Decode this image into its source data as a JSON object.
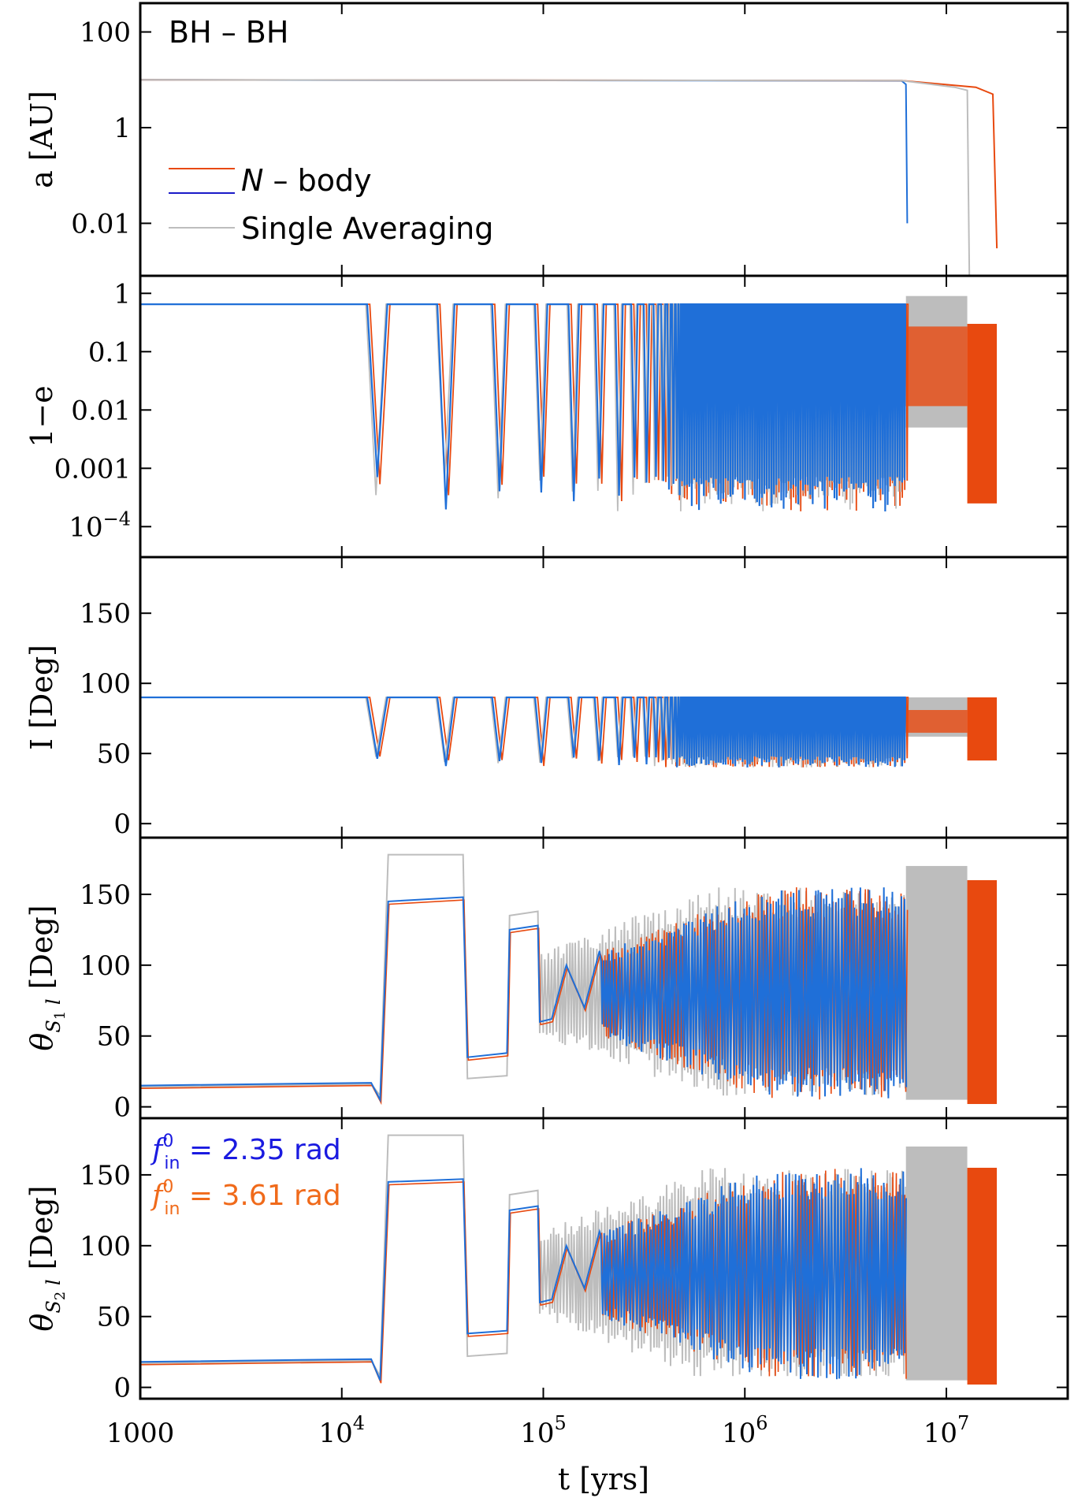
{
  "colors": {
    "orange": "#e8490f",
    "blue": "#1f6fd8",
    "legend_blue": "#1a1ac8",
    "gray": "#bdbdbd",
    "annot_blue": "#1a1ae0",
    "annot_orange": "#f06a1a"
  },
  "chart_data": [
    {
      "type": "line",
      "panel": "a",
      "title": "BH – BH",
      "ylabel": "a [AU]",
      "yscale": "log",
      "ylim": [
        0.0008,
        400
      ],
      "yticks": [
        {
          "v": 100,
          "label": "100"
        },
        {
          "v": 1,
          "label": "1"
        },
        {
          "v": 0.01,
          "label": "0.01"
        }
      ],
      "legend": [
        {
          "label": "N – body",
          "style": "orange+blue",
          "label_parts": [
            "N",
            " – body"
          ]
        },
        {
          "label": "Single Averaging",
          "style": "gray"
        }
      ],
      "series": [
        {
          "name": "N – body",
          "color": "blue",
          "points": [
            [
              1000,
              10
            ],
            [
              6000000,
              9.5
            ],
            [
              6300000,
              8
            ],
            [
              6400000,
              0.01
            ]
          ]
        },
        {
          "name": "N – body",
          "color": "orange",
          "points": [
            [
              1000,
              10
            ],
            [
              6000000,
              9.6
            ],
            [
              14000000,
              7
            ],
            [
              17000000,
              5
            ],
            [
              17800000,
              0.003
            ]
          ]
        },
        {
          "name": "Single Averaging",
          "color": "gray",
          "points": [
            [
              1000,
              10
            ],
            [
              6000000,
              9.6
            ],
            [
              11000000,
              7
            ],
            [
              12700000,
              6
            ],
            [
              13000000,
              0.0008
            ]
          ]
        }
      ]
    },
    {
      "type": "line",
      "panel": "1-e",
      "ylabel": "1−e",
      "yscale": "log",
      "ylim": [
        3e-05,
        2
      ],
      "yticks": [
        {
          "v": 1,
          "label": "1"
        },
        {
          "v": 0.1,
          "label": "0.1"
        },
        {
          "v": 0.01,
          "label": "0.01"
        },
        {
          "v": 0.001,
          "label": "0.001"
        },
        {
          "v": 0.0001,
          "label": "10",
          "sup": "−4"
        }
      ],
      "baseline": 0.65,
      "dip_min": 0.00018,
      "dips_years": [
        15000,
        41000,
        68000,
        96000
      ],
      "blue_end": 6300000,
      "gray_end": 12700000,
      "orange_end": 17800000,
      "band_gray": [
        0.005,
        0.9
      ],
      "band_orange": [
        0.00025,
        0.3
      ]
    },
    {
      "type": "line",
      "panel": "I",
      "ylabel": "I [Deg]",
      "ylim": [
        -10,
        190
      ],
      "yticks": [
        {
          "v": 150,
          "label": "150"
        },
        {
          "v": 100,
          "label": "100"
        },
        {
          "v": 50,
          "label": "50"
        },
        {
          "v": 0,
          "label": "0"
        }
      ],
      "baseline": 90,
      "dip_min": 40,
      "band_gray": [
        62,
        90
      ],
      "band_orange": [
        45,
        90
      ]
    },
    {
      "type": "line",
      "panel": "theta_s1_l",
      "ylabel": "θ",
      "ylabel_sub": "S1 l",
      "ylabel_suffix": " [Deg]",
      "ylim": [
        -8,
        190
      ],
      "yticks": [
        {
          "v": 150,
          "label": "150"
        },
        {
          "v": 100,
          "label": "100"
        },
        {
          "v": 50,
          "label": "50"
        },
        {
          "v": 0,
          "label": "0"
        }
      ],
      "steps_blue": [
        [
          1000,
          15
        ],
        [
          14000,
          17
        ],
        [
          15500,
          5
        ],
        [
          17000,
          145
        ],
        [
          40000,
          148
        ],
        [
          42000,
          35
        ],
        [
          66000,
          38
        ],
        [
          68000,
          125
        ],
        [
          94000,
          128
        ],
        [
          96000,
          60
        ],
        [
          110000,
          62
        ],
        [
          130000,
          100
        ],
        [
          160000,
          70
        ],
        [
          190000,
          110
        ]
      ],
      "steps_gray": [
        [
          1000,
          14
        ],
        [
          14000,
          16
        ],
        [
          15500,
          8
        ],
        [
          17000,
          178
        ],
        [
          40000,
          178
        ],
        [
          42000,
          20
        ],
        [
          66000,
          22
        ],
        [
          68000,
          135
        ],
        [
          94000,
          138
        ],
        [
          96000,
          52
        ]
      ],
      "band_gray": [
        5,
        170
      ],
      "band_orange": [
        2,
        160
      ]
    },
    {
      "type": "line",
      "panel": "theta_s2_l",
      "ylabel": "θ",
      "ylabel_sub": "S2 l",
      "ylabel_suffix": " [Deg]",
      "ylim": [
        -8,
        190
      ],
      "yticks": [
        {
          "v": 150,
          "label": "150"
        },
        {
          "v": 100,
          "label": "100"
        },
        {
          "v": 50,
          "label": "50"
        },
        {
          "v": 0,
          "label": "0"
        }
      ],
      "steps_blue": [
        [
          1000,
          18
        ],
        [
          14000,
          20
        ],
        [
          15500,
          5
        ],
        [
          17000,
          145
        ],
        [
          40000,
          147
        ],
        [
          42000,
          38
        ],
        [
          66000,
          40
        ],
        [
          68000,
          125
        ],
        [
          94000,
          128
        ],
        [
          96000,
          60
        ],
        [
          110000,
          62
        ],
        [
          130000,
          100
        ],
        [
          160000,
          70
        ],
        [
          190000,
          110
        ]
      ],
      "steps_gray": [
        [
          1000,
          17
        ],
        [
          14000,
          19
        ],
        [
          15500,
          8
        ],
        [
          17000,
          178
        ],
        [
          40000,
          178
        ],
        [
          42000,
          22
        ],
        [
          66000,
          24
        ],
        [
          68000,
          136
        ],
        [
          94000,
          139
        ],
        [
          96000,
          52
        ]
      ],
      "band_gray": [
        5,
        170
      ],
      "band_orange": [
        2,
        155
      ],
      "annotations": [
        {
          "color": "annot_blue",
          "f": "f",
          "sup": "0",
          "sub": "in",
          "rest": " = 2.35 rad"
        },
        {
          "color": "annot_orange",
          "f": "f",
          "sup": "0",
          "sub": "in",
          "rest": " = 3.61 rad"
        }
      ]
    }
  ],
  "xaxis": {
    "label": "t [yrs]",
    "scale": "log",
    "xlim": [
      1000,
      40000000
    ],
    "ticks": [
      {
        "v": 1000,
        "label": "1000"
      },
      {
        "v": 10000,
        "base": "10",
        "sup": "4"
      },
      {
        "v": 100000,
        "base": "10",
        "sup": "5"
      },
      {
        "v": 1000000,
        "base": "10",
        "sup": "6"
      },
      {
        "v": 10000000,
        "base": "10",
        "sup": "7"
      }
    ]
  }
}
